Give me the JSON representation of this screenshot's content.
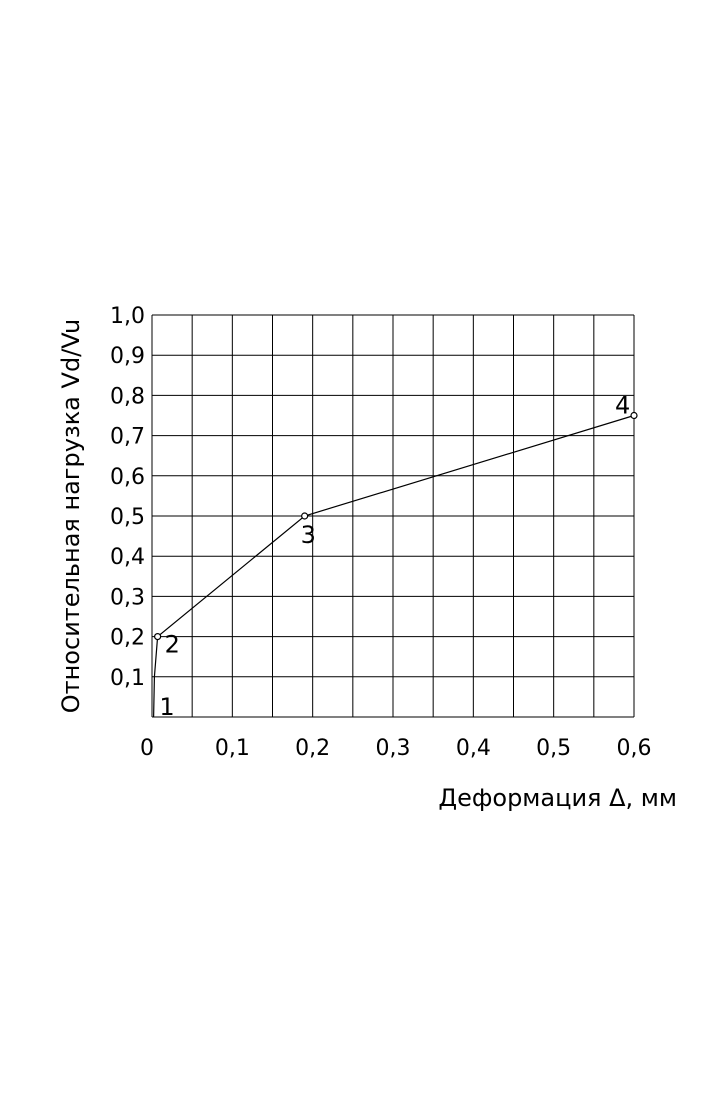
{
  "chart_data": {
    "type": "line",
    "title": "",
    "xlabel": "Деформация Δ, мм",
    "ylabel": "Относительная нагрузка Vd/Vu",
    "xlim": [
      0,
      0.6
    ],
    "ylim": [
      0,
      1.0
    ],
    "grid": true,
    "x_ticks": [
      "0",
      "0,1",
      "0,2",
      "0,3",
      "0,4",
      "0,5",
      "0,6"
    ],
    "y_ticks": [
      "0,1",
      "0,2",
      "0,3",
      "0,4",
      "0,5",
      "0,6",
      "0,7",
      "0,8",
      "0,9",
      "1,0"
    ],
    "series": [
      {
        "points": [
          {
            "x": 0.002,
            "y": 0.0
          },
          {
            "x": 0.003,
            "y": 0.1
          },
          {
            "x": 0.007,
            "y": 0.2
          },
          {
            "x": 0.19,
            "y": 0.5
          },
          {
            "x": 0.6,
            "y": 0.75
          }
        ],
        "markers": [
          {
            "x": 0.007,
            "y": 0.2
          },
          {
            "x": 0.19,
            "y": 0.5
          },
          {
            "x": 0.6,
            "y": 0.75
          }
        ],
        "point_labels": [
          {
            "text": "1",
            "x": 0.003,
            "y": 0.0
          },
          {
            "text": "2",
            "x": 0.007,
            "y": 0.2
          },
          {
            "text": "3",
            "x": 0.19,
            "y": 0.5
          },
          {
            "text": "4",
            "x": 0.6,
            "y": 0.75
          }
        ]
      }
    ]
  }
}
